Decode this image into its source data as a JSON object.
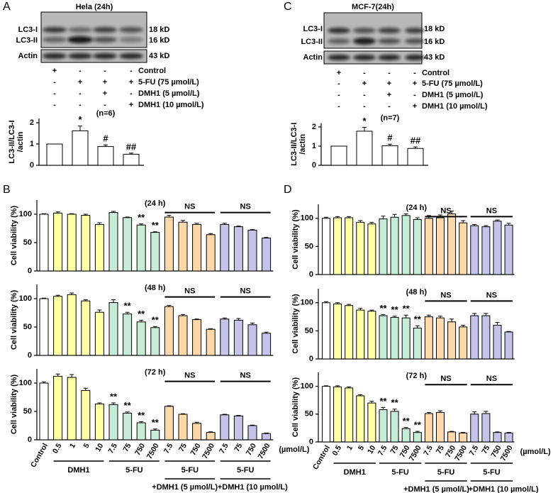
{
  "panel_labels": [
    "A",
    "B",
    "C",
    "D"
  ],
  "blots": [
    {
      "title": "Hela (24h)",
      "bands": [
        "LC3-I",
        "LC3-II",
        "Actin"
      ],
      "sizes": [
        "18 kD",
        "16 kD",
        "43 kD"
      ],
      "signs": [
        [
          "+",
          "-",
          "-",
          "-"
        ],
        [
          "-",
          "+",
          "+",
          "+"
        ],
        [
          "-",
          "-",
          "+",
          "-"
        ],
        [
          "-",
          "-",
          "-",
          "+"
        ]
      ],
      "treatments": [
        "Control",
        "5-FU (75 µmol/L)",
        "DMH1 (5 µmol/L)",
        "DMH1 (10 µmol/L)"
      ]
    },
    {
      "title": "MCF-7(24h)",
      "bands": [
        "LC3-I",
        "LC3-II",
        "Actin"
      ],
      "sizes": [
        "18 kD",
        "16 kD",
        "43 kD"
      ],
      "signs": [
        [
          "+",
          "-",
          "-",
          "-"
        ],
        [
          "-",
          "+",
          "+",
          "+"
        ],
        [
          "-",
          "-",
          "+",
          "-"
        ],
        [
          "-",
          "-",
          "-",
          "+"
        ]
      ],
      "treatments": [
        "Control",
        "5-FU (75 µmol/L)",
        "DMH1 (5 µmol/L)",
        "DMH1 (10 µmol/L)"
      ]
    }
  ],
  "chart_data": [
    {
      "type": "bar",
      "ylabel": [
        "LC3-II/LC3-I",
        "/actin"
      ],
      "note": "(n=6)",
      "color": "#ffffff",
      "values": [
        1,
        1.62,
        0.88,
        0.52
      ],
      "errors": [
        0,
        0.22,
        0.08,
        0.05
      ],
      "annotations": [
        null,
        "*",
        "#",
        "##"
      ],
      "ylim": [
        0,
        2.2
      ],
      "yticks": [
        0,
        1,
        2
      ]
    },
    {
      "type": "bar",
      "ylabel": [
        "LC3-II/LC3-I",
        "/actin"
      ],
      "note": "(n=7)",
      "color": "#ffffff",
      "values": [
        1,
        1.78,
        1.02,
        0.88
      ],
      "errors": [
        0,
        0.2,
        0.08,
        0.08
      ],
      "annotations": [
        null,
        "*",
        "#",
        "##"
      ],
      "ylim": [
        0,
        2.2
      ],
      "yticks": [
        0,
        1,
        2
      ]
    },
    {
      "type": "bar",
      "title": "(24 h)",
      "ylabel": "Cell viability (%)",
      "values": [
        100,
        102,
        100,
        98,
        82,
        103,
        94,
        81,
        68,
        95,
        86,
        82,
        64,
        82,
        78,
        72,
        58
      ],
      "errors": [
        1,
        2,
        1,
        2,
        3,
        2,
        1,
        2,
        1,
        3,
        3,
        2,
        2,
        2,
        1,
        1,
        1
      ],
      "colors": [
        "#ffffff",
        "#ffffa8",
        "#ffffa8",
        "#ffffa8",
        "#ffffa8",
        "#c6ecd6",
        "#c6ecd6",
        "#c6ecd6",
        "#c6ecd6",
        "#fcd9aa",
        "#fcd9aa",
        "#fcd9aa",
        "#fcd9aa",
        "#c4c4ea",
        "#c4c4ea",
        "#c4c4ea",
        "#c4c4ea"
      ],
      "annotations": [
        null,
        null,
        null,
        null,
        null,
        null,
        null,
        "**",
        "**",
        null,
        null,
        null,
        null,
        null,
        null,
        null,
        null
      ],
      "ns": [
        {
          "text": "NS",
          "from": 9,
          "to": 12
        },
        {
          "text": "NS",
          "from": 13,
          "to": 16
        }
      ],
      "ylim": [
        0,
        125
      ],
      "yticks": [
        0,
        50,
        100
      ]
    },
    {
      "type": "bar",
      "title": "(48 h)",
      "ylabel": "Cell viability (%)",
      "values": [
        100,
        104,
        107,
        96,
        76,
        93,
        73,
        59,
        49,
        86,
        70,
        63,
        46,
        64,
        62,
        54,
        39
      ],
      "errors": [
        1,
        2,
        3,
        2,
        4,
        5,
        3,
        3,
        2,
        2,
        2,
        1,
        1,
        2,
        3,
        3,
        2
      ],
      "colors": [
        "#ffffff",
        "#ffffa8",
        "#ffffa8",
        "#ffffa8",
        "#ffffa8",
        "#c6ecd6",
        "#c6ecd6",
        "#c6ecd6",
        "#c6ecd6",
        "#fcd9aa",
        "#fcd9aa",
        "#fcd9aa",
        "#fcd9aa",
        "#c4c4ea",
        "#c4c4ea",
        "#c4c4ea",
        "#c4c4ea"
      ],
      "annotations": [
        null,
        null,
        null,
        null,
        null,
        null,
        "**",
        "**",
        "**",
        null,
        null,
        null,
        null,
        null,
        null,
        null,
        null
      ],
      "ns": [
        {
          "text": "NS",
          "from": 9,
          "to": 12
        },
        {
          "text": "NS",
          "from": 13,
          "to": 16
        }
      ],
      "ylim": [
        0,
        125
      ],
      "yticks": [
        0,
        50,
        100
      ]
    },
    {
      "type": "bar",
      "title": "(72 h)",
      "ylabel": "Cell viability (%)",
      "values": [
        100,
        112,
        110,
        87,
        63,
        62,
        47,
        30,
        17,
        59,
        45,
        29,
        13,
        44,
        42,
        25,
        11
      ],
      "errors": [
        2,
        4,
        5,
        4,
        2,
        3,
        2,
        2,
        2,
        1,
        1,
        2,
        1,
        1,
        1,
        1,
        1
      ],
      "colors": [
        "#ffffff",
        "#ffffa8",
        "#ffffa8",
        "#ffffa8",
        "#ffffa8",
        "#c6ecd6",
        "#c6ecd6",
        "#c6ecd6",
        "#c6ecd6",
        "#fcd9aa",
        "#fcd9aa",
        "#fcd9aa",
        "#fcd9aa",
        "#c4c4ea",
        "#c4c4ea",
        "#c4c4ea",
        "#c4c4ea"
      ],
      "annotations": [
        null,
        null,
        null,
        null,
        null,
        "**",
        "**",
        "**",
        "**",
        null,
        null,
        null,
        null,
        null,
        null,
        null,
        null
      ],
      "ns": [
        {
          "text": "NS",
          "from": 9,
          "to": 12
        },
        {
          "text": "NS",
          "from": 13,
          "to": 16
        }
      ],
      "categories": [
        "Control",
        "0.5",
        "1",
        "5",
        "10",
        "7.5",
        "75",
        "750",
        "7500",
        "7.5",
        "75",
        "750",
        "7500",
        "7.5",
        "75",
        "750",
        "7500"
      ],
      "xunit": "(µmol/L)",
      "groups": [
        {
          "label": "DMH1",
          "from": 1,
          "to": 4
        },
        {
          "label": "5-FU",
          "from": 5,
          "to": 8
        },
        {
          "label": "5-FU",
          "sublabel": "+DMH1 (5 µmol/L)",
          "from": 9,
          "to": 12
        },
        {
          "label": "5-FU",
          "sublabel": "+DMH1 (10 µmol/L)",
          "from": 13,
          "to": 16
        }
      ],
      "ylim": [
        0,
        125
      ],
      "yticks": [
        0,
        50,
        100
      ]
    },
    {
      "type": "bar",
      "title": "(24 h)",
      "ylabel": "Cell viability (%)",
      "values": [
        100,
        101,
        101,
        93,
        90,
        99,
        102,
        105,
        98,
        100,
        101,
        108,
        92,
        87,
        85,
        95,
        88
      ],
      "errors": [
        2,
        2,
        2,
        3,
        3,
        5,
        5,
        3,
        3,
        5,
        5,
        5,
        4,
        2,
        2,
        2,
        3
      ],
      "colors": [
        "#ffffff",
        "#ffffa8",
        "#ffffa8",
        "#ffffa8",
        "#ffffa8",
        "#c6ecd6",
        "#c6ecd6",
        "#c6ecd6",
        "#c6ecd6",
        "#fcd9aa",
        "#fcd9aa",
        "#fcd9aa",
        "#fcd9aa",
        "#c4c4ea",
        "#c4c4ea",
        "#c4c4ea",
        "#c4c4ea"
      ],
      "annotations": [
        null,
        null,
        null,
        null,
        null,
        null,
        null,
        null,
        null,
        null,
        null,
        null,
        null,
        null,
        null,
        null,
        null
      ],
      "ns": [
        {
          "text": "NS",
          "from": 9,
          "to": 12
        },
        {
          "text": "NS",
          "from": 13,
          "to": 16
        }
      ],
      "ylim": [
        0,
        125
      ],
      "yticks": [
        0,
        50,
        100
      ]
    },
    {
      "type": "bar",
      "title": "(48 h)",
      "ylabel": "Cell viability (%)",
      "values": [
        100,
        98,
        95,
        87,
        85,
        77,
        74,
        73,
        55,
        75,
        73,
        66,
        57,
        77,
        77,
        60,
        48
      ],
      "errors": [
        2,
        2,
        2,
        3,
        2,
        2,
        2,
        5,
        4,
        3,
        3,
        5,
        3,
        4,
        4,
        5,
        1
      ],
      "colors": [
        "#ffffff",
        "#ffffa8",
        "#ffffa8",
        "#ffffa8",
        "#ffffa8",
        "#c6ecd6",
        "#c6ecd6",
        "#c6ecd6",
        "#c6ecd6",
        "#fcd9aa",
        "#fcd9aa",
        "#fcd9aa",
        "#fcd9aa",
        "#c4c4ea",
        "#c4c4ea",
        "#c4c4ea",
        "#c4c4ea"
      ],
      "annotations": [
        null,
        null,
        null,
        null,
        null,
        "**",
        "**",
        "**",
        "**",
        null,
        null,
        null,
        null,
        null,
        null,
        null,
        null
      ],
      "ns": [
        {
          "text": "NS",
          "from": 9,
          "to": 12
        },
        {
          "text": "NS",
          "from": 13,
          "to": 16
        }
      ],
      "ylim": [
        0,
        125
      ],
      "yticks": [
        0,
        50,
        100
      ]
    },
    {
      "type": "bar",
      "title": "(72 h)",
      "ylabel": "Cell viability (%)",
      "values": [
        100,
        99,
        97,
        83,
        70,
        58,
        55,
        24,
        17,
        51,
        53,
        18,
        16,
        50,
        51,
        17,
        16
      ],
      "errors": [
        1,
        2,
        2,
        2,
        3,
        4,
        4,
        2,
        2,
        2,
        3,
        1,
        1,
        4,
        4,
        1,
        1
      ],
      "colors": [
        "#ffffff",
        "#ffffa8",
        "#ffffa8",
        "#ffffa8",
        "#ffffa8",
        "#c6ecd6",
        "#c6ecd6",
        "#c6ecd6",
        "#c6ecd6",
        "#fcd9aa",
        "#fcd9aa",
        "#fcd9aa",
        "#fcd9aa",
        "#c4c4ea",
        "#c4c4ea",
        "#c4c4ea",
        "#c4c4ea"
      ],
      "annotations": [
        null,
        null,
        null,
        null,
        null,
        "**",
        "**",
        "**",
        "**",
        null,
        null,
        null,
        null,
        null,
        null,
        null,
        null
      ],
      "ns": [
        {
          "text": "NS",
          "from": 9,
          "to": 12
        },
        {
          "text": "NS",
          "from": 13,
          "to": 16
        }
      ],
      "categories": [
        "Control",
        "0.5",
        "1",
        "5",
        "10",
        "7.5",
        "75",
        "750",
        "7500",
        "7.5",
        "75",
        "750",
        "7500",
        "7.5",
        "75",
        "750",
        "7500"
      ],
      "xunit": "(µmol/L)",
      "groups": [
        {
          "label": "DMH1",
          "from": 1,
          "to": 4
        },
        {
          "label": "5-FU",
          "from": 5,
          "to": 8
        },
        {
          "label": "5-FU",
          "sublabel": "+DMH1 (5 µmol/L)",
          "from": 9,
          "to": 12
        },
        {
          "label": "5-FU",
          "sublabel": "+DMH1 (10 µmol/L)",
          "from": 13,
          "to": 16
        }
      ],
      "ylim": [
        0,
        125
      ],
      "yticks": [
        0,
        50,
        100
      ]
    }
  ]
}
